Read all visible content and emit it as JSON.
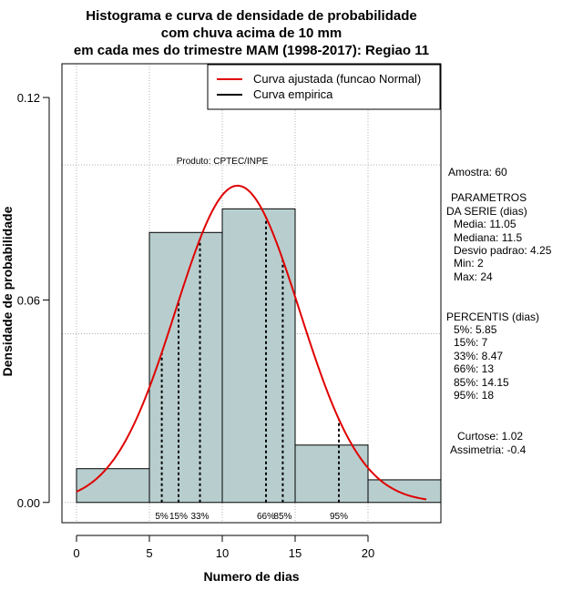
{
  "chart_data": {
    "type": "bar",
    "title_lines": [
      "Histograma e curva de densidade de probabilidade",
      "com chuva acima de 10 mm",
      "em cada mes do trimestre MAM (1998-2017): Regiao 11"
    ],
    "xlabel": "Numero de dias",
    "ylabel": "Densidade de probabilidade",
    "xlim": [
      -1,
      25
    ],
    "ylim": [
      -0.006,
      0.13
    ],
    "xticks": [
      0,
      5,
      10,
      15,
      20
    ],
    "xtick_labels": [
      "0",
      "5",
      "10",
      "15",
      "20"
    ],
    "yticks": [
      0.0,
      0.06,
      0.12
    ],
    "ytick_labels": [
      "0.00",
      "0.06",
      "0.12"
    ],
    "grid_x": [
      0,
      5,
      10,
      15,
      20
    ],
    "grid_y": [
      0.0,
      0.05,
      0.1
    ],
    "bins": [
      {
        "x0": 0,
        "x1": 5,
        "density": 0.01
      },
      {
        "x0": 5,
        "x1": 10,
        "density": 0.08
      },
      {
        "x0": 10,
        "x1": 15,
        "density": 0.087
      },
      {
        "x0": 15,
        "x1": 20,
        "density": 0.017
      },
      {
        "x0": 20,
        "x1": 25,
        "density": 0.0067
      }
    ],
    "bar_color": "#b8cece",
    "normal_curve": {
      "mean": 11.05,
      "sd": 4.25,
      "x_from": 0,
      "x_to": 24,
      "color": "#e00000"
    },
    "percentile_lines": [
      {
        "label": "5%",
        "x": 5.85
      },
      {
        "label": "15%",
        "x": 7
      },
      {
        "label": "33%",
        "x": 8.47
      },
      {
        "label": "66%",
        "x": 13
      },
      {
        "label": "85%",
        "x": 14.15
      },
      {
        "label": "95%",
        "x": 18
      }
    ],
    "legend": {
      "position": "top-right",
      "entries": [
        {
          "label": "Curva ajustada (funcao Normal)",
          "color": "#e00000"
        },
        {
          "label": "Curva empirica",
          "color": "#000000"
        }
      ]
    },
    "annotation": "Produto: CPTEC/INPE"
  },
  "side_panel": {
    "amostra": "Amostra: 60",
    "parametros_title_1": "PARAMETROS",
    "parametros_title_2": "DA SERIE (dias)",
    "media": "Media: 11.05",
    "mediana": "Mediana: 11.5",
    "desvio": "Desvio padrao: 4.25",
    "min": "Min: 2",
    "max": "Max: 24",
    "percentis_title": "PERCENTIS (dias)",
    "p5": "5%: 5.85",
    "p15": "15%: 7",
    "p33": "33%: 8.47",
    "p66": "66%: 13",
    "p85": "85%: 14.15",
    "p95": "95%: 18",
    "curtose": "Curtose: 1.02",
    "assimetria": "Assimetria: -0.4"
  }
}
